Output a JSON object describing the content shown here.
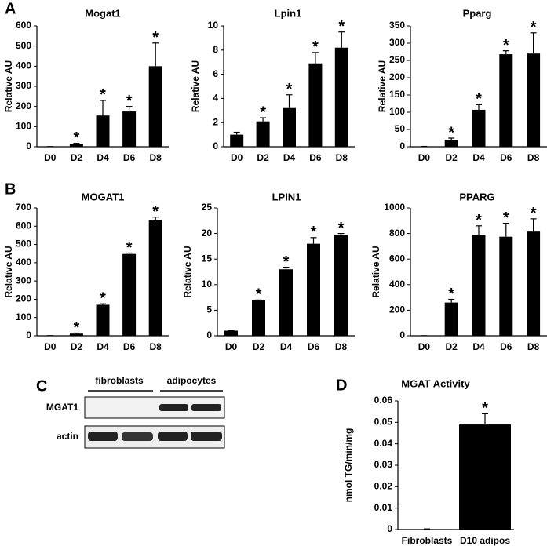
{
  "panel_labels": [
    "A",
    "B",
    "C",
    "D"
  ],
  "blot": {
    "groups": [
      "fibroblasts",
      "adipocytes"
    ],
    "rows": [
      "MGAT1",
      "actin"
    ]
  },
  "chart_data": [
    {
      "type": "bar",
      "title": "Mogat1",
      "y_label": "Relative AU",
      "categories": [
        "D0",
        "D2",
        "D4",
        "D6",
        "D8"
      ],
      "values": [
        1,
        12,
        155,
        175,
        400
      ],
      "errors": [
        0,
        5,
        75,
        25,
        115
      ],
      "significance": [
        null,
        "*",
        "*",
        "*",
        "*"
      ],
      "color": "#000000",
      "ylim": [
        0,
        600
      ],
      "yticks": [
        0,
        100,
        200,
        300,
        400,
        500,
        600
      ]
    },
    {
      "type": "bar",
      "title": "Lpin1",
      "y_label": "Relative AU",
      "categories": [
        "D0",
        "D2",
        "D4",
        "D6",
        "D8"
      ],
      "values": [
        1,
        2.1,
        3.2,
        6.9,
        8.2
      ],
      "errors": [
        0.2,
        0.3,
        1.1,
        0.9,
        1.3
      ],
      "significance": [
        null,
        "*",
        "*",
        "*",
        "*"
      ],
      "color": "#000000",
      "ylim": [
        0,
        10
      ],
      "yticks": [
        0,
        2,
        4,
        6,
        8,
        10
      ]
    },
    {
      "type": "bar",
      "title": "Pparg",
      "y_label": "Relative AU",
      "categories": [
        "D0",
        "D2",
        "D4",
        "D6",
        "D8"
      ],
      "values": [
        1,
        20,
        107,
        268,
        270
      ],
      "errors": [
        0,
        5,
        15,
        10,
        60
      ],
      "significance": [
        null,
        "*",
        "*",
        "*",
        "*"
      ],
      "color": "#000000",
      "ylim": [
        0,
        350
      ],
      "yticks": [
        0,
        50,
        100,
        150,
        200,
        250,
        300,
        350
      ]
    },
    {
      "type": "bar",
      "title": "MOGAT1",
      "y_label": "Relative AU",
      "categories": [
        "D0",
        "D2",
        "D4",
        "D6",
        "D8"
      ],
      "values": [
        1,
        12,
        170,
        448,
        632
      ],
      "errors": [
        0,
        3,
        5,
        5,
        18
      ],
      "significance": [
        null,
        "*",
        "*",
        "*",
        "*"
      ],
      "color": "#000000",
      "ylim": [
        0,
        700
      ],
      "yticks": [
        0,
        100,
        200,
        300,
        400,
        500,
        600,
        700
      ]
    },
    {
      "type": "bar",
      "title": "LPIN1",
      "y_label": "Relative AU",
      "categories": [
        "D0",
        "D2",
        "D4",
        "D6",
        "D8"
      ],
      "values": [
        1,
        6.9,
        13,
        18,
        19.7
      ],
      "errors": [
        0,
        0.1,
        0.4,
        1.2,
        0.3
      ],
      "significance": [
        null,
        "*",
        "*",
        "*",
        "*"
      ],
      "color": "#000000",
      "ylim": [
        0,
        25
      ],
      "yticks": [
        0,
        5,
        10,
        15,
        20,
        25
      ]
    },
    {
      "type": "bar",
      "title": "PPARG",
      "y_label": "Relative AU",
      "categories": [
        "D0",
        "D2",
        "D4",
        "D6",
        "D8"
      ],
      "values": [
        1,
        260,
        790,
        775,
        815
      ],
      "errors": [
        0,
        25,
        70,
        105,
        100
      ],
      "significance": [
        null,
        "*",
        "*",
        "*",
        "*"
      ],
      "color": "#000000",
      "ylim": [
        0,
        1000
      ],
      "yticks": [
        0,
        200,
        400,
        600,
        800,
        1000
      ]
    },
    {
      "type": "bar",
      "title": "MGAT Activity",
      "y_label": "nmol TG/min/mg",
      "categories": [
        "Fibroblasts",
        "D10 adipos"
      ],
      "values": [
        0.0002,
        0.049
      ],
      "errors": [
        0.0001,
        0.005
      ],
      "significance": [
        null,
        "*"
      ],
      "color": "#000000",
      "ylim": [
        0,
        0.06
      ],
      "yticks": [
        0,
        0.01,
        0.02,
        0.03,
        0.04,
        0.05,
        0.06
      ]
    }
  ]
}
